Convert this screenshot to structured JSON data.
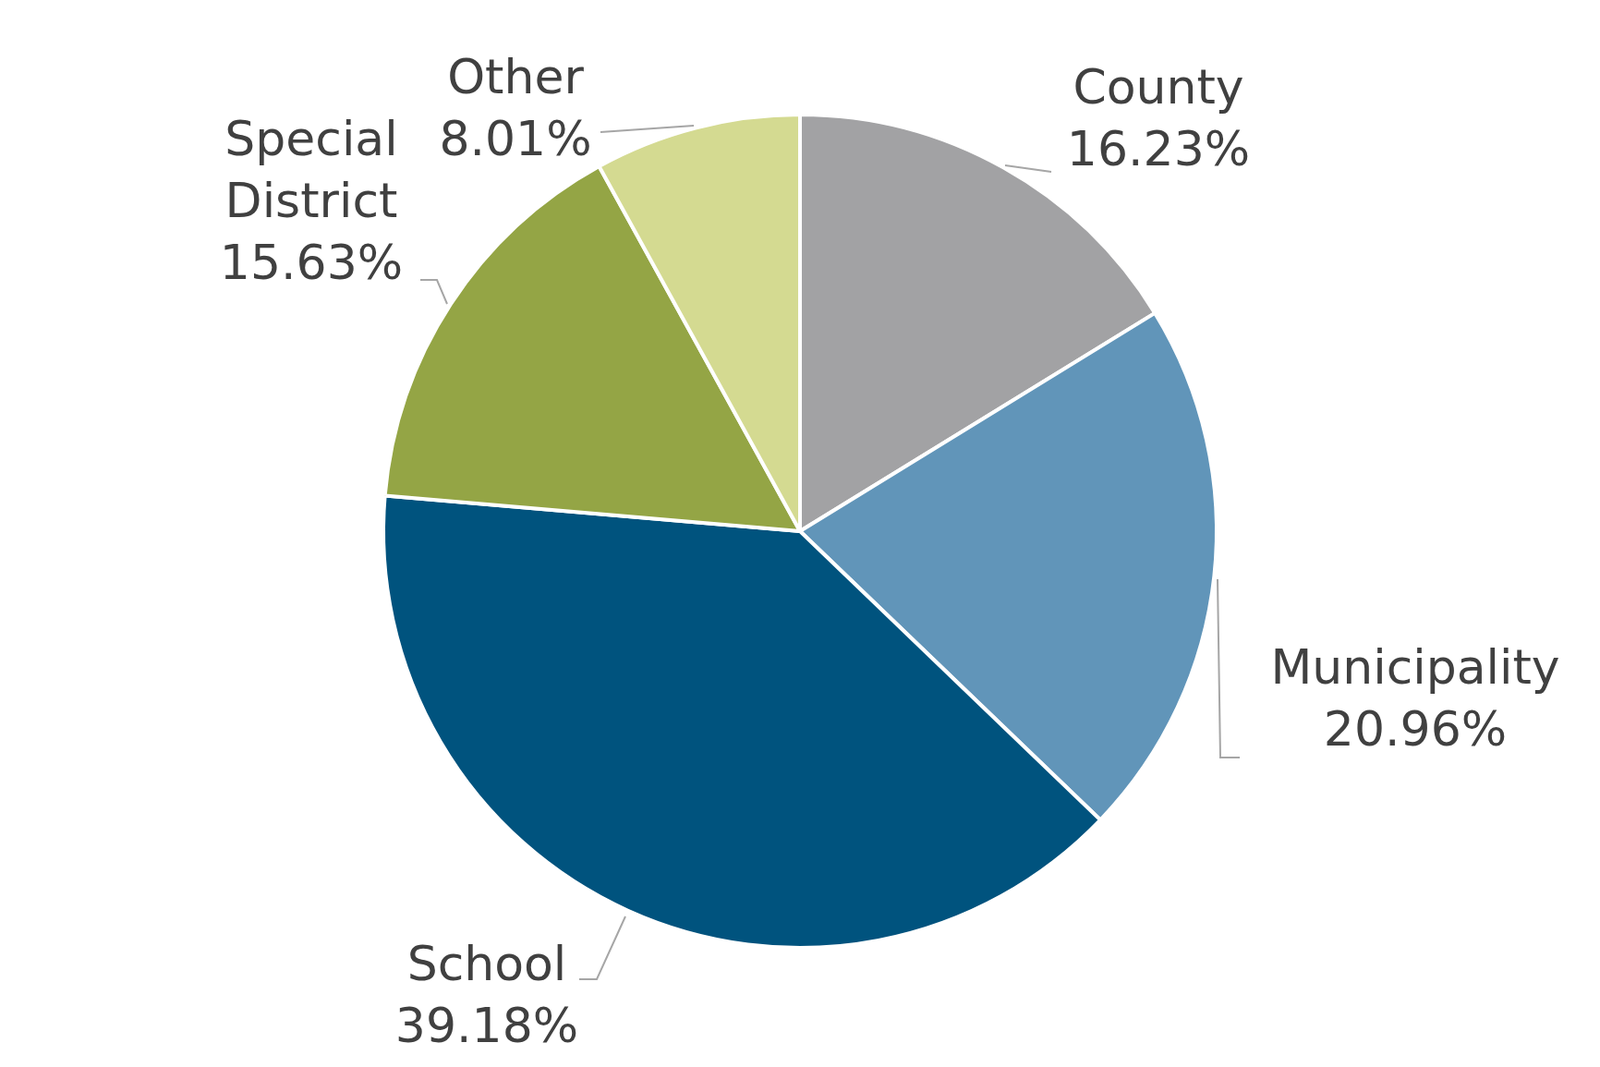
{
  "chart_data": {
    "type": "pie",
    "categories": [
      "County",
      "Municipality",
      "School",
      "Special District",
      "Other"
    ],
    "values": [
      16.23,
      20.96,
      39.18,
      15.63,
      8.01
    ],
    "value_labels": [
      "16.23%",
      "20.96%",
      "39.18%",
      "15.63%",
      "8.01%"
    ],
    "colors": [
      "#a2a2a4",
      "#6195b9",
      "#00537e",
      "#94a545",
      "#d4da91"
    ],
    "data_labels": true
  }
}
